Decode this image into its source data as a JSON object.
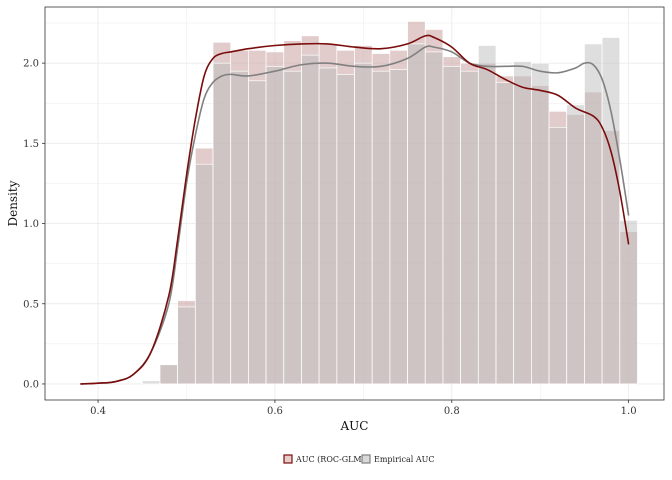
{
  "chart_data": {
    "type": "bar",
    "xlabel": "AUC",
    "ylabel": "Density",
    "xlim": [
      0.34,
      1.04
    ],
    "ylim": [
      -0.1,
      2.35
    ],
    "xticks": [
      0.4,
      0.6,
      0.8,
      1.0
    ],
    "xtick_labels": [
      "0.4",
      "0.6",
      "0.8",
      "1.0"
    ],
    "yticks": [
      0.0,
      0.5,
      1.0,
      1.5,
      2.0
    ],
    "ytick_labels": [
      "0.0",
      "0.5",
      "1.0",
      "1.5",
      "2.0"
    ],
    "grid": true,
    "legend_position": "bottom",
    "bins": [
      0.45,
      0.47,
      0.49,
      0.51,
      0.53,
      0.55,
      0.57,
      0.59,
      0.61,
      0.63,
      0.65,
      0.67,
      0.69,
      0.71,
      0.73,
      0.75,
      0.77,
      0.79,
      0.81,
      0.83,
      0.85,
      0.87,
      0.89,
      0.91,
      0.93,
      0.95,
      0.97,
      0.99,
      1.01
    ],
    "series": [
      {
        "name": "AUC (ROC-GLM)",
        "kind": "histogram",
        "color": "#c8a0a0",
        "densities": [
          0.0,
          0.12,
          0.52,
          1.47,
          2.13,
          2.08,
          2.08,
          2.07,
          2.14,
          2.17,
          2.12,
          2.08,
          2.11,
          2.06,
          2.08,
          2.26,
          2.21,
          2.04,
          2.0,
          2.0,
          1.92,
          1.92,
          1.86,
          1.7,
          1.68,
          1.82,
          1.58,
          0.95
        ]
      },
      {
        "name": "Empirical AUC",
        "kind": "histogram",
        "color": "#bdbdbd",
        "densities": [
          0.02,
          0.12,
          0.48,
          1.37,
          2.0,
          1.95,
          1.89,
          1.98,
          1.95,
          2.05,
          1.97,
          1.93,
          2.0,
          1.95,
          1.96,
          2.12,
          2.07,
          1.98,
          1.95,
          2.11,
          1.88,
          2.01,
          2.0,
          1.6,
          1.74,
          2.12,
          2.16,
          1.02
        ]
      },
      {
        "name": "AUC (ROC-GLM)",
        "kind": "density",
        "color": "#7a0c0c",
        "x": [
          0.38,
          0.4,
          0.42,
          0.44,
          0.46,
          0.48,
          0.49,
          0.5,
          0.51,
          0.52,
          0.53,
          0.54,
          0.55,
          0.57,
          0.6,
          0.63,
          0.66,
          0.69,
          0.72,
          0.75,
          0.77,
          0.78,
          0.8,
          0.82,
          0.84,
          0.86,
          0.88,
          0.9,
          0.92,
          0.94,
          0.96,
          0.97,
          0.98,
          0.99,
          1.0
        ],
        "y": [
          0.0,
          0.005,
          0.015,
          0.06,
          0.2,
          0.55,
          0.9,
          1.3,
          1.65,
          1.92,
          2.03,
          2.06,
          2.07,
          2.09,
          2.11,
          2.12,
          2.12,
          2.1,
          2.09,
          2.12,
          2.17,
          2.16,
          2.1,
          2.0,
          1.96,
          1.9,
          1.85,
          1.83,
          1.8,
          1.72,
          1.67,
          1.6,
          1.45,
          1.2,
          0.87
        ]
      },
      {
        "name": "Empirical AUC",
        "kind": "density",
        "color": "#808080",
        "x": [
          0.38,
          0.4,
          0.42,
          0.44,
          0.46,
          0.48,
          0.49,
          0.5,
          0.51,
          0.52,
          0.53,
          0.54,
          0.55,
          0.57,
          0.6,
          0.63,
          0.66,
          0.69,
          0.72,
          0.75,
          0.77,
          0.78,
          0.8,
          0.82,
          0.84,
          0.86,
          0.88,
          0.9,
          0.92,
          0.94,
          0.95,
          0.96,
          0.97,
          0.98,
          0.99,
          1.0
        ],
        "y": [
          0.0,
          0.005,
          0.015,
          0.06,
          0.2,
          0.5,
          0.85,
          1.25,
          1.55,
          1.78,
          1.88,
          1.92,
          1.93,
          1.92,
          1.95,
          1.99,
          2.0,
          1.98,
          1.98,
          2.03,
          2.1,
          2.1,
          2.07,
          2.0,
          1.98,
          1.98,
          1.98,
          1.95,
          1.94,
          1.97,
          2.0,
          1.99,
          1.9,
          1.7,
          1.4,
          1.05
        ]
      }
    ],
    "legend": [
      {
        "label": "AUC (ROC-GLM)",
        "fill": "#e7cccc",
        "stroke": "#7a0c0c"
      },
      {
        "label": "Empirical AUC",
        "fill": "#d9d9d9",
        "stroke": "#808080"
      }
    ]
  }
}
